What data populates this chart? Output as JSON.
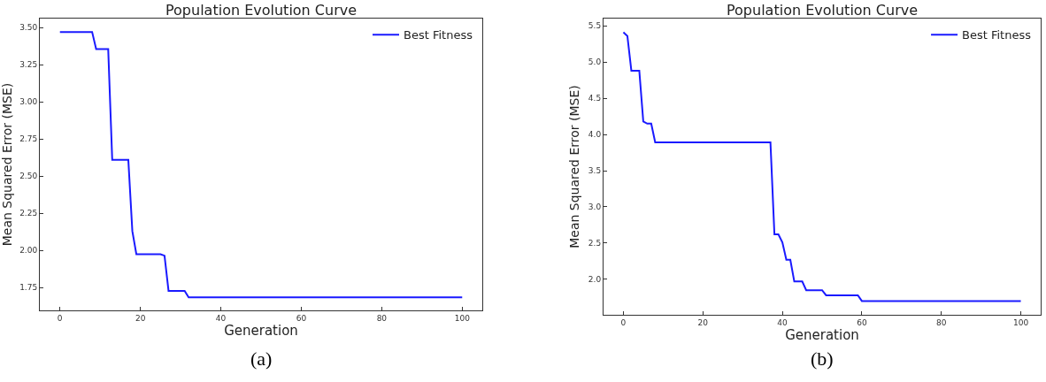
{
  "chart_data": [
    {
      "type": "line",
      "title": "Population Evolution Curve",
      "xlabel": "Generation",
      "ylabel": "Mean Squared Error (MSE)",
      "annotations": [
        "(a)"
      ],
      "x": [
        0,
        8,
        9,
        12,
        13,
        17,
        18,
        19,
        25,
        26,
        27,
        31,
        32,
        100
      ],
      "series": [
        {
          "name": "Best Fitness",
          "color": "#1a1aff",
          "values": [
            3.47,
            3.47,
            3.355,
            3.355,
            2.61,
            2.61,
            2.13,
            1.975,
            1.975,
            1.965,
            1.728,
            1.728,
            1.684,
            1.684
          ]
        }
      ],
      "xlim": [
        -5,
        105
      ],
      "xticks": [
        0,
        20,
        40,
        60,
        80,
        100
      ],
      "ylim": [
        1.597,
        3.56
      ],
      "yticks": [
        1.75,
        {
          "value": 2.0,
          "label": "2.00"
        },
        2.25,
        {
          "value": 2.5,
          "label": "2.50"
        },
        2.75,
        {
          "value": 3.0,
          "label": "3.00"
        },
        3.25,
        {
          "value": 3.5,
          "label": "3.50"
        }
      ],
      "legend": "top right",
      "line_style": "solid",
      "marker": "none"
    },
    {
      "type": "line",
      "title": "Population Evolution Curve",
      "xlabel": "Generation",
      "ylabel": "Mean Squared Error (MSE)",
      "annotations": [
        "(b)"
      ],
      "x": [
        0,
        1,
        2,
        4,
        5,
        6,
        7,
        8,
        37,
        38,
        39,
        40,
        41,
        42,
        43,
        45,
        46,
        50,
        51,
        59,
        60,
        100
      ],
      "series": [
        {
          "name": "Best Fitness",
          "color": "#1a1aff",
          "values": [
            5.41,
            5.36,
            4.88,
            4.88,
            4.18,
            4.15,
            4.15,
            3.89,
            3.89,
            2.62,
            2.62,
            2.51,
            2.27,
            2.27,
            1.97,
            1.97,
            1.85,
            1.85,
            1.78,
            1.78,
            1.7,
            1.7
          ]
        }
      ],
      "xlim": [
        -5,
        105
      ],
      "xticks": [
        0,
        20,
        40,
        60,
        80,
        100
      ],
      "ylim": [
        1.51,
        5.6
      ],
      "yticks": [
        {
          "value": 2.0,
          "label": "2.0"
        },
        2.5,
        {
          "value": 3.0,
          "label": "3.0"
        },
        3.5,
        {
          "value": 4.0,
          "label": "4.0"
        },
        4.5,
        {
          "value": 5.0,
          "label": "5.0"
        },
        5.5
      ],
      "legend": "top right",
      "line_style": "solid",
      "marker": "none"
    }
  ]
}
